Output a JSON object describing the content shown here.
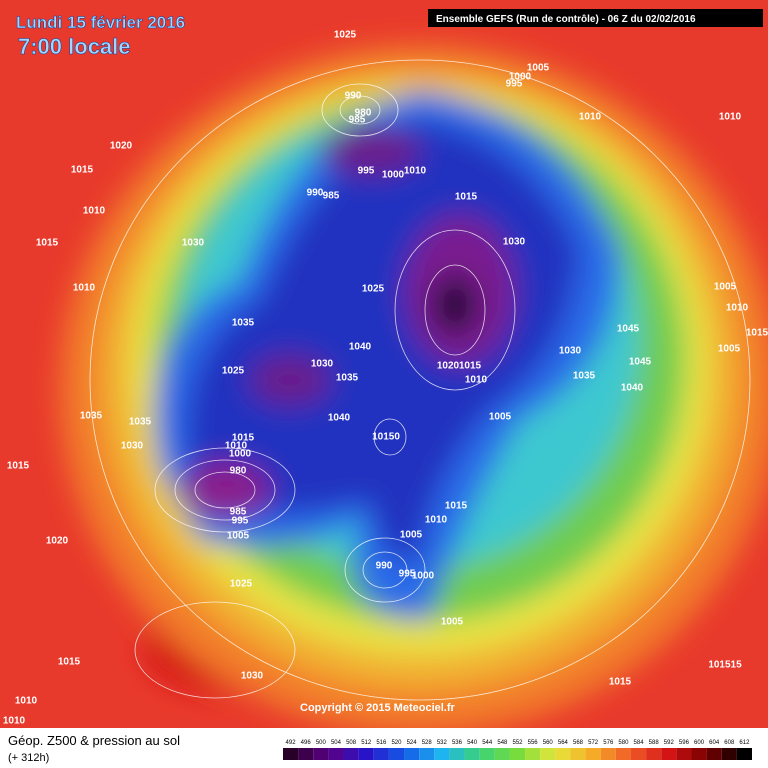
{
  "header": {
    "date": "Lundi 15 février 2016",
    "time": "7:00 locale",
    "run": "Ensemble GEFS  (Run de contrôle)  -  06 Z du 02/02/2016"
  },
  "copyright": "Copyright © 2015 Meteociel.fr",
  "legend": {
    "title": "Géop. Z500 & pression au sol",
    "lead": "(+ 312h)",
    "scale": [
      492,
      496,
      500,
      504,
      508,
      512,
      516,
      520,
      524,
      528,
      532,
      536,
      540,
      544,
      548,
      552,
      556,
      560,
      564,
      568,
      572,
      576,
      580,
      584,
      588,
      592,
      596,
      600,
      604,
      608,
      612
    ]
  },
  "isobars": [
    {
      "label": "1025"
    },
    {
      "label": "1005"
    },
    {
      "label": "1000"
    },
    {
      "label": "995"
    },
    {
      "label": "990"
    },
    {
      "label": "980"
    },
    {
      "label": "985"
    },
    {
      "label": "1010"
    },
    {
      "label": "1010"
    },
    {
      "label": "1020"
    },
    {
      "label": "1015"
    },
    {
      "label": "995"
    },
    {
      "label": "1000"
    },
    {
      "label": "1010"
    },
    {
      "label": "990"
    },
    {
      "label": "985"
    },
    {
      "label": "1015"
    },
    {
      "label": "1010"
    },
    {
      "label": "1015"
    },
    {
      "label": "1030"
    },
    {
      "label": "1030"
    },
    {
      "label": "1010"
    },
    {
      "label": "1025"
    },
    {
      "label": "1005"
    },
    {
      "label": "1010"
    },
    {
      "label": "1035"
    },
    {
      "label": "1045"
    },
    {
      "label": "1015"
    },
    {
      "label": "1040"
    },
    {
      "label": "1030"
    },
    {
      "label": "1030"
    },
    {
      "label": "1045"
    },
    {
      "label": "1005"
    },
    {
      "label": "1025"
    },
    {
      "label": "1020"
    },
    {
      "label": "1015"
    },
    {
      "label": "1035"
    },
    {
      "label": "1010"
    },
    {
      "label": "1035"
    },
    {
      "label": "1040"
    },
    {
      "label": "1035"
    },
    {
      "label": "1035"
    },
    {
      "label": "1040"
    },
    {
      "label": "1005"
    },
    {
      "label": "1030"
    },
    {
      "label": "1015"
    },
    {
      "label": "1010"
    },
    {
      "label": "10150"
    },
    {
      "label": "1000"
    },
    {
      "label": "1015"
    },
    {
      "label": "980"
    },
    {
      "label": "985"
    },
    {
      "label": "995"
    },
    {
      "label": "1005"
    },
    {
      "label": "1015"
    },
    {
      "label": "1010"
    },
    {
      "label": "1005"
    },
    {
      "label": "1020"
    },
    {
      "label": "990"
    },
    {
      "label": "995"
    },
    {
      "label": "1000"
    },
    {
      "label": "1025"
    },
    {
      "label": "1005"
    },
    {
      "label": "1015"
    },
    {
      "label": "1030"
    },
    {
      "label": "101515"
    },
    {
      "label": "1015"
    },
    {
      "label": "1010"
    },
    {
      "label": "1010"
    }
  ]
}
